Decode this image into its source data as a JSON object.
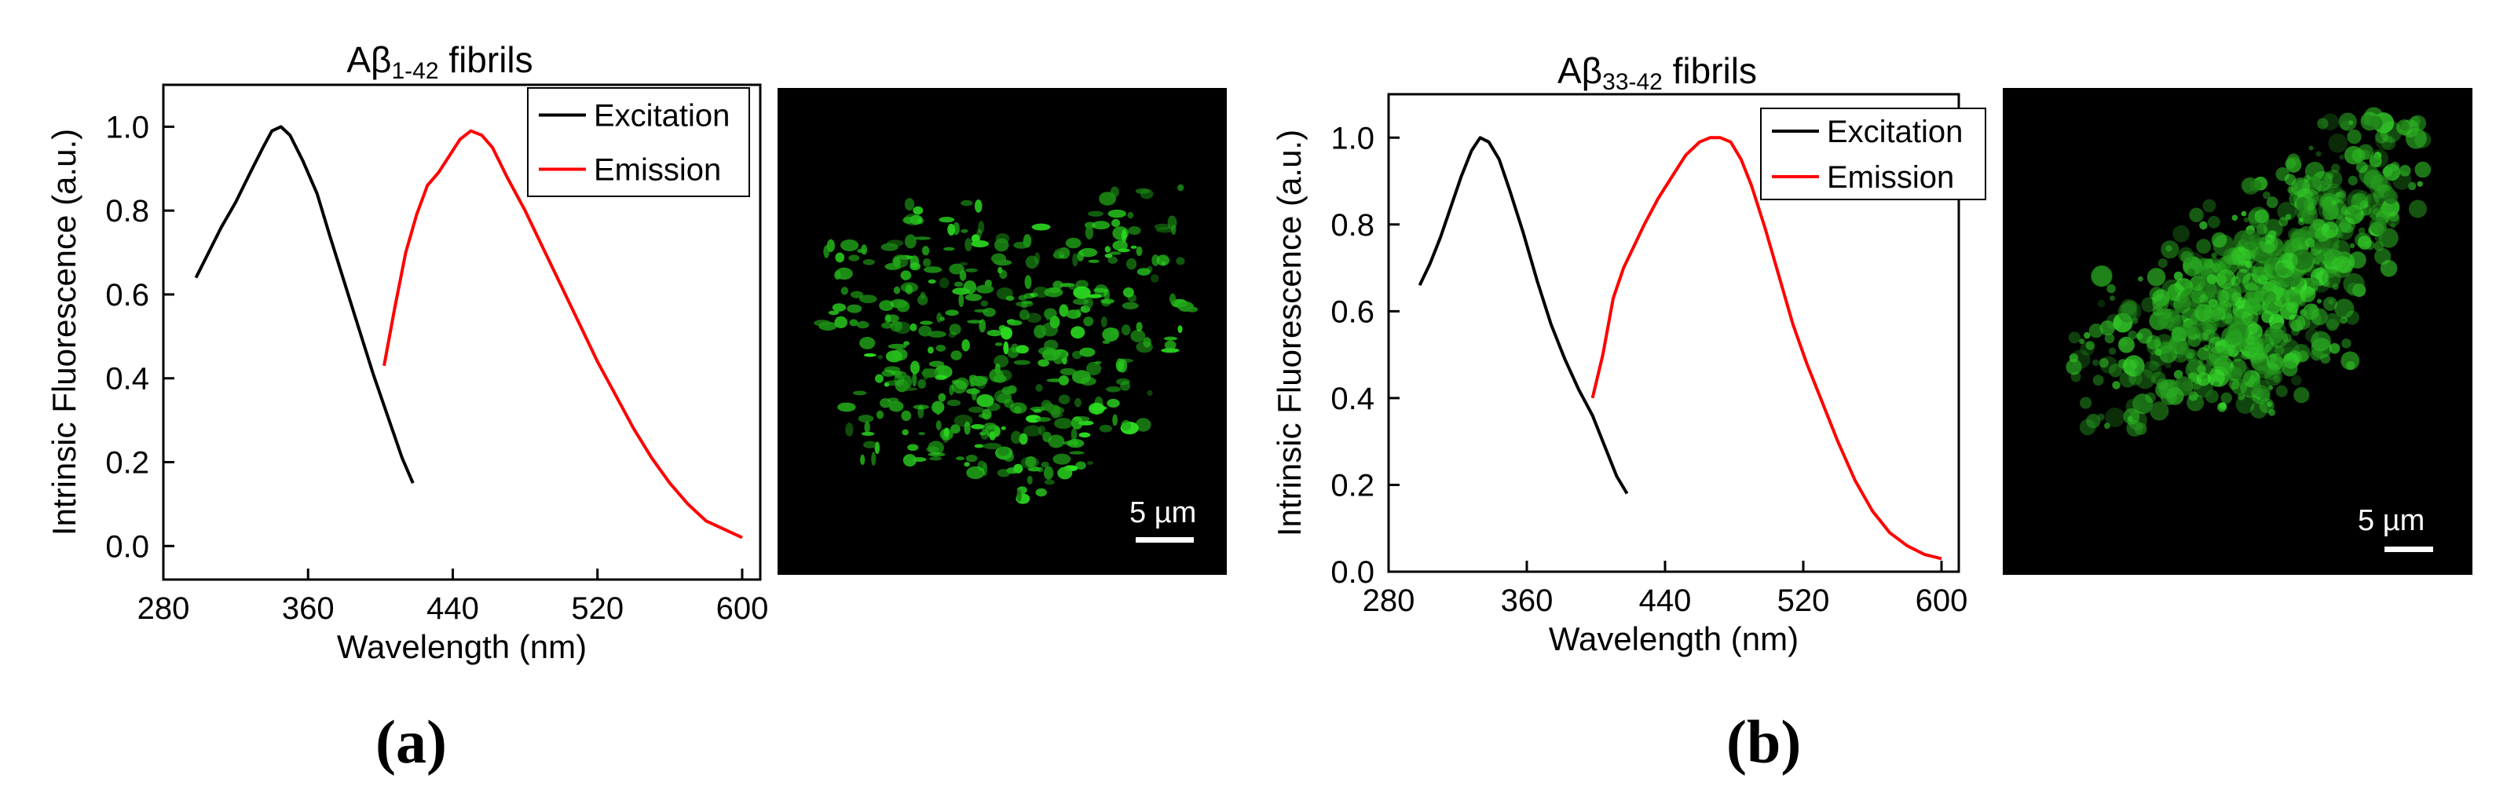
{
  "panels": [
    {
      "label": "(a)",
      "micrograph": {
        "scale_label": "5 µm"
      },
      "chart_data": {
        "type": "line",
        "title_parts": [
          "Aβ",
          "1-42",
          " fibrils"
        ],
        "xlabel": "Wavelength (nm)",
        "ylabel": "Intrinsic Fluorescence (a.u.)",
        "xlim": [
          280,
          610
        ],
        "ylim": [
          -0.08,
          1.1
        ],
        "xticks": [
          280,
          360,
          440,
          520,
          600
        ],
        "yticks": [
          0.0,
          0.2,
          0.4,
          0.6,
          0.8,
          1.0
        ],
        "ytick_labels": [
          "0.0",
          "0.2",
          "0.4",
          "0.6",
          "0.8",
          "1.0"
        ],
        "grid": false,
        "legend_position": "top-right",
        "series": [
          {
            "name": "Excitation",
            "color": "#000000",
            "x": [
              298,
              305,
              312,
              320,
              328,
              335,
              340,
              345,
              350,
              357,
              365,
              372,
              380,
              388,
              396,
              404,
              412,
              418
            ],
            "y": [
              0.64,
              0.7,
              0.76,
              0.82,
              0.89,
              0.95,
              0.99,
              1.0,
              0.98,
              0.92,
              0.84,
              0.74,
              0.63,
              0.52,
              0.41,
              0.31,
              0.21,
              0.15
            ]
          },
          {
            "name": "Emission",
            "color": "#ff0000",
            "x": [
              402,
              408,
              414,
              420,
              426,
              432,
              438,
              444,
              450,
              456,
              462,
              470,
              480,
              490,
              500,
              510,
              520,
              530,
              540,
              550,
              560,
              570,
              580,
              590,
              600
            ],
            "y": [
              0.43,
              0.57,
              0.7,
              0.79,
              0.86,
              0.89,
              0.93,
              0.97,
              0.99,
              0.98,
              0.95,
              0.88,
              0.8,
              0.71,
              0.62,
              0.53,
              0.44,
              0.36,
              0.28,
              0.21,
              0.15,
              0.1,
              0.06,
              0.04,
              0.02
            ]
          }
        ]
      }
    },
    {
      "label": "(b)",
      "micrograph": {
        "scale_label": "5 µm"
      },
      "chart_data": {
        "type": "line",
        "title_parts": [
          "Aβ",
          "33-42",
          " fibrils"
        ],
        "xlabel": "Wavelength (nm)",
        "ylabel": "Intrinsic Fluorescence (a.u.)",
        "xlim": [
          280,
          610
        ],
        "ylim": [
          0.0,
          1.1
        ],
        "xticks": [
          280,
          360,
          440,
          520,
          600
        ],
        "yticks": [
          0.0,
          0.2,
          0.4,
          0.6,
          0.8,
          1.0
        ],
        "ytick_labels": [
          "0.0",
          "0.2",
          "0.4",
          "0.6",
          "0.8",
          "1.0"
        ],
        "grid": false,
        "legend_position": "top-right",
        "series": [
          {
            "name": "Excitation",
            "color": "#000000",
            "x": [
              298,
              304,
              310,
              316,
              322,
              328,
              333,
              338,
              344,
              350,
              358,
              366,
              374,
              382,
              390,
              398,
              406,
              412,
              418
            ],
            "y": [
              0.66,
              0.71,
              0.77,
              0.84,
              0.91,
              0.97,
              1.0,
              0.99,
              0.95,
              0.88,
              0.78,
              0.67,
              0.57,
              0.49,
              0.42,
              0.36,
              0.28,
              0.22,
              0.18
            ]
          },
          {
            "name": "Emission",
            "color": "#ff0000",
            "x": [
              398,
              404,
              410,
              416,
              422,
              428,
              436,
              444,
              452,
              460,
              466,
              472,
              478,
              484,
              490,
              498,
              506,
              514,
              522,
              530,
              540,
              550,
              560,
              570,
              580,
              590,
              600
            ],
            "y": [
              0.4,
              0.5,
              0.63,
              0.7,
              0.75,
              0.8,
              0.86,
              0.91,
              0.96,
              0.99,
              1.0,
              1.0,
              0.99,
              0.95,
              0.89,
              0.79,
              0.68,
              0.57,
              0.48,
              0.4,
              0.3,
              0.21,
              0.14,
              0.09,
              0.06,
              0.04,
              0.03
            ]
          }
        ]
      }
    }
  ]
}
